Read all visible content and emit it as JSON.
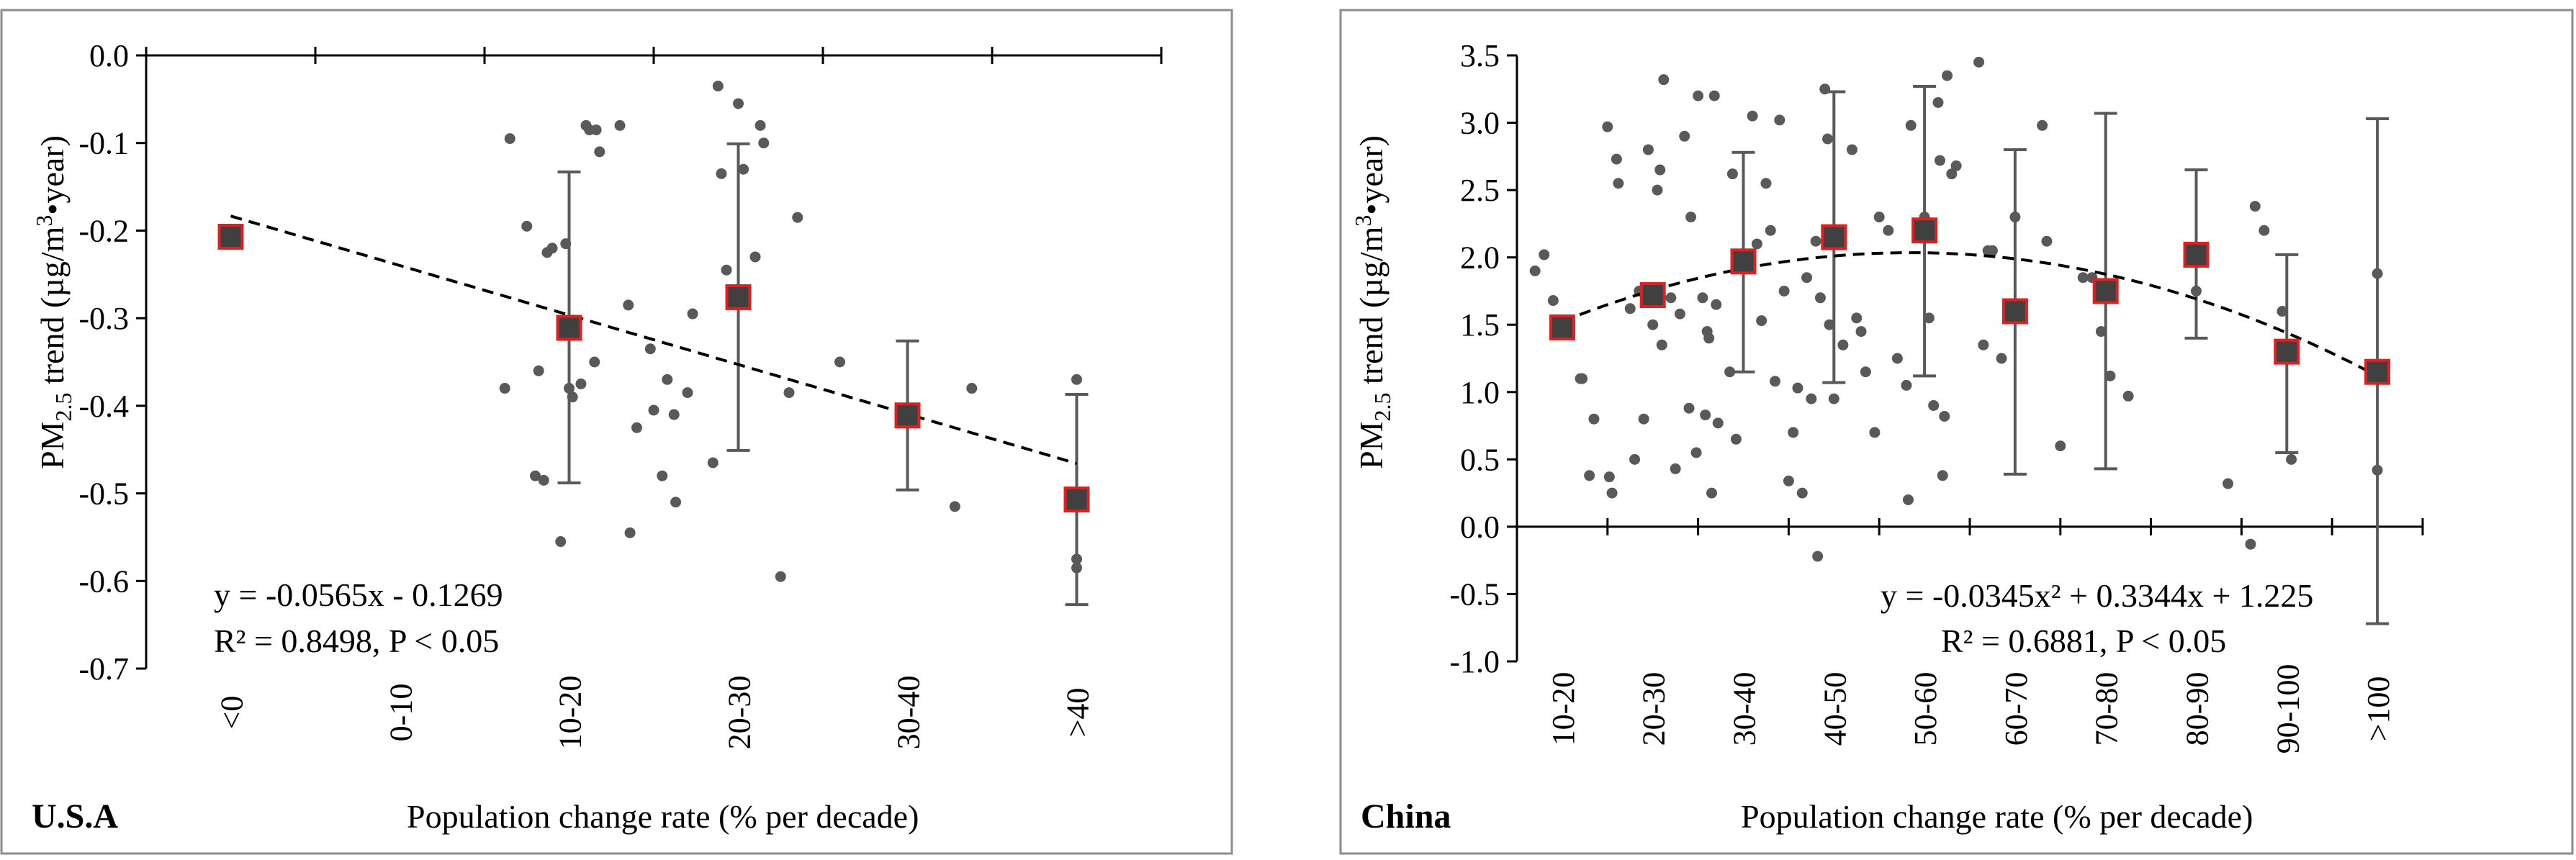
{
  "colors": {
    "marker_fill": "#404040",
    "marker_edge": "#e02020",
    "point": "#595959",
    "errorbar": "#595959"
  },
  "chart_data": [
    {
      "panel": "U.S.A",
      "type": "scatter",
      "title": "",
      "panel_label": "U.S.A",
      "xlabel": "Population change rate (% per decade)",
      "ylabel": "PM2.5 trend (µg/m³•year)",
      "ylabel_parts": {
        "pm": "PM",
        "sub": "2.5",
        "rest": " trend (µg/m",
        "sup": "3",
        "end": "•year)"
      },
      "categories": [
        "<0",
        "0-10",
        "10-20",
        "20-30",
        "30-40",
        ">40"
      ],
      "ylim": [
        -0.7,
        0.0
      ],
      "yticks": [
        0.0,
        -0.1,
        -0.2,
        -0.3,
        -0.4,
        -0.5,
        -0.6,
        -0.7
      ],
      "ytick_labels": [
        "0.0",
        "-0.1",
        "-0.2",
        "-0.3",
        "-0.4",
        "-0.5",
        "-0.6",
        "-0.7"
      ],
      "means": [
        {
          "x": 0,
          "y": -0.207
        },
        {
          "x": 2,
          "y": -0.311
        },
        {
          "x": 3,
          "y": -0.276
        },
        {
          "x": 4,
          "y": -0.411
        },
        {
          "x": 5,
          "y": -0.507
        }
      ],
      "error_bars": [
        {
          "x": 2,
          "low": -0.488,
          "high": -0.133
        },
        {
          "x": 3,
          "low": -0.451,
          "high": -0.101
        },
        {
          "x": 4,
          "low": -0.496,
          "high": -0.326
        },
        {
          "x": 5,
          "low": -0.627,
          "high": -0.387
        }
      ],
      "points": [
        [
          1.62,
          -0.38
        ],
        [
          1.65,
          -0.095
        ],
        [
          1.75,
          -0.195
        ],
        [
          1.8,
          -0.48
        ],
        [
          1.82,
          -0.36
        ],
        [
          1.85,
          -0.485
        ],
        [
          1.87,
          -0.225
        ],
        [
          1.9,
          -0.22
        ],
        [
          1.95,
          -0.555
        ],
        [
          1.98,
          -0.215
        ],
        [
          2.0,
          -0.38
        ],
        [
          2.02,
          -0.39
        ],
        [
          2.07,
          -0.375
        ],
        [
          2.1,
          -0.08
        ],
        [
          2.12,
          -0.085
        ],
        [
          2.15,
          -0.35
        ],
        [
          2.16,
          -0.085
        ],
        [
          2.18,
          -0.11
        ],
        [
          2.3,
          -0.08
        ],
        [
          2.35,
          -0.285
        ],
        [
          2.36,
          -0.545
        ],
        [
          2.4,
          -0.425
        ],
        [
          2.48,
          -0.335
        ],
        [
          2.5,
          -0.405
        ],
        [
          2.55,
          -0.48
        ],
        [
          2.58,
          -0.37
        ],
        [
          2.62,
          -0.41
        ],
        [
          2.63,
          -0.51
        ],
        [
          2.7,
          -0.385
        ],
        [
          2.73,
          -0.295
        ],
        [
          2.85,
          -0.465
        ],
        [
          2.88,
          -0.035
        ],
        [
          2.9,
          -0.135
        ],
        [
          2.93,
          -0.245
        ],
        [
          3.0,
          -0.055
        ],
        [
          3.03,
          -0.13
        ],
        [
          3.1,
          -0.23
        ],
        [
          3.13,
          -0.08
        ],
        [
          3.15,
          -0.1
        ],
        [
          3.25,
          -0.595
        ],
        [
          3.3,
          -0.385
        ],
        [
          3.35,
          -0.185
        ],
        [
          3.6,
          -0.35
        ],
        [
          4.0,
          -0.41
        ],
        [
          4.28,
          -0.515
        ],
        [
          4.38,
          -0.38
        ],
        [
          5.0,
          -0.37
        ],
        [
          5.0,
          -0.575
        ],
        [
          5.0,
          -0.585
        ]
      ],
      "trendline": {
        "type": "linear",
        "a": -0.0565,
        "b": -0.1269,
        "x_start": 1,
        "x_end": 6
      },
      "equation": "y = -0.0565x - 0.1269",
      "r2_text": "R² = 0.8498, P < 0.05"
    },
    {
      "panel": "China",
      "type": "scatter",
      "title": "",
      "panel_label": "China",
      "xlabel": "Population change rate (% per decade)",
      "ylabel": "PM2.5 trend (µg/m³•year)",
      "ylabel_parts": {
        "pm": "PM",
        "sub": "2.5",
        "rest": " trend (µg/m",
        "sup": "3",
        "end": "•year)"
      },
      "categories": [
        "10-20",
        "20-30",
        "30-40",
        "40-50",
        "50-60",
        "60-70",
        "70-80",
        "80-90",
        "90-100",
        ">100"
      ],
      "ylim": [
        -1.0,
        3.5
      ],
      "yticks": [
        3.5,
        3.0,
        2.5,
        2.0,
        1.5,
        1.0,
        0.5,
        0.0,
        -0.5,
        -1.0
      ],
      "ytick_labels": [
        "3.5",
        "3.0",
        "2.5",
        "2.0",
        "1.5",
        "1.0",
        "0.5",
        "0.0",
        "-0.5",
        "-1.0"
      ],
      "means": [
        {
          "x": 0,
          "y": 1.48
        },
        {
          "x": 1,
          "y": 1.72
        },
        {
          "x": 2,
          "y": 1.97
        },
        {
          "x": 3,
          "y": 2.15
        },
        {
          "x": 4,
          "y": 2.2
        },
        {
          "x": 5,
          "y": 1.6
        },
        {
          "x": 6,
          "y": 1.75
        },
        {
          "x": 7,
          "y": 2.02
        },
        {
          "x": 8,
          "y": 1.3
        },
        {
          "x": 9,
          "y": 1.15
        }
      ],
      "error_bars": [
        {
          "x": 2,
          "low": 1.15,
          "high": 2.78
        },
        {
          "x": 3,
          "low": 1.07,
          "high": 3.23
        },
        {
          "x": 4,
          "low": 1.12,
          "high": 3.27
        },
        {
          "x": 5,
          "low": 0.39,
          "high": 2.8
        },
        {
          "x": 6,
          "low": 0.43,
          "high": 3.07
        },
        {
          "x": 7,
          "low": 1.4,
          "high": 2.65
        },
        {
          "x": 8,
          "low": 0.55,
          "high": 2.02
        },
        {
          "x": 9,
          "low": -0.72,
          "high": 3.03
        }
      ],
      "points": [
        [
          -0.3,
          1.9
        ],
        [
          -0.2,
          2.02
        ],
        [
          -0.1,
          1.68
        ],
        [
          0.2,
          1.1
        ],
        [
          0.22,
          1.1
        ],
        [
          0.3,
          0.38
        ],
        [
          0.35,
          0.8
        ],
        [
          0.5,
          2.97
        ],
        [
          0.52,
          0.37
        ],
        [
          0.55,
          0.25
        ],
        [
          0.6,
          2.73
        ],
        [
          0.62,
          2.55
        ],
        [
          0.75,
          1.62
        ],
        [
          0.8,
          0.5
        ],
        [
          0.85,
          1.75
        ],
        [
          0.9,
          0.8
        ],
        [
          0.95,
          2.8
        ],
        [
          1.0,
          1.5
        ],
        [
          1.05,
          2.5
        ],
        [
          1.08,
          2.65
        ],
        [
          1.1,
          1.35
        ],
        [
          1.12,
          3.32
        ],
        [
          1.2,
          1.7
        ],
        [
          1.25,
          0.43
        ],
        [
          1.3,
          1.58
        ],
        [
          1.35,
          2.9
        ],
        [
          1.4,
          0.88
        ],
        [
          1.42,
          2.3
        ],
        [
          1.48,
          0.55
        ],
        [
          1.5,
          3.2
        ],
        [
          1.55,
          1.7
        ],
        [
          1.58,
          0.83
        ],
        [
          1.6,
          1.45
        ],
        [
          1.62,
          1.4
        ],
        [
          1.65,
          0.25
        ],
        [
          1.68,
          3.2
        ],
        [
          1.7,
          1.65
        ],
        [
          1.72,
          0.77
        ],
        [
          1.85,
          1.15
        ],
        [
          1.88,
          2.62
        ],
        [
          1.92,
          0.65
        ],
        [
          2.1,
          3.05
        ],
        [
          2.15,
          2.1
        ],
        [
          2.2,
          1.53
        ],
        [
          2.25,
          2.55
        ],
        [
          2.3,
          2.2
        ],
        [
          2.35,
          1.08
        ],
        [
          2.4,
          3.02
        ],
        [
          2.45,
          1.75
        ],
        [
          2.5,
          0.34
        ],
        [
          2.55,
          0.7
        ],
        [
          2.6,
          1.03
        ],
        [
          2.65,
          0.25
        ],
        [
          2.7,
          1.85
        ],
        [
          2.75,
          0.95
        ],
        [
          2.8,
          2.12
        ],
        [
          2.82,
          -0.22
        ],
        [
          2.85,
          1.7
        ],
        [
          2.9,
          3.25
        ],
        [
          2.93,
          2.88
        ],
        [
          2.95,
          1.5
        ],
        [
          3.0,
          0.95
        ],
        [
          3.1,
          1.35
        ],
        [
          3.2,
          2.8
        ],
        [
          3.25,
          1.55
        ],
        [
          3.3,
          1.45
        ],
        [
          3.35,
          1.15
        ],
        [
          3.45,
          0.7
        ],
        [
          3.5,
          2.3
        ],
        [
          3.6,
          2.2
        ],
        [
          3.7,
          1.25
        ],
        [
          3.8,
          1.05
        ],
        [
          3.82,
          0.2
        ],
        [
          3.85,
          2.98
        ],
        [
          4.0,
          2.3
        ],
        [
          4.05,
          1.55
        ],
        [
          4.1,
          0.9
        ],
        [
          4.15,
          3.15
        ],
        [
          4.17,
          2.72
        ],
        [
          4.2,
          0.38
        ],
        [
          4.22,
          0.82
        ],
        [
          4.25,
          3.35
        ],
        [
          4.3,
          2.62
        ],
        [
          4.35,
          2.68
        ],
        [
          4.6,
          3.45
        ],
        [
          4.65,
          1.35
        ],
        [
          4.7,
          2.05
        ],
        [
          4.75,
          2.05
        ],
        [
          4.85,
          1.25
        ],
        [
          5.0,
          2.3
        ],
        [
          5.3,
          2.98
        ],
        [
          5.35,
          2.12
        ],
        [
          5.5,
          0.6
        ],
        [
          5.75,
          1.85
        ],
        [
          5.85,
          1.85
        ],
        [
          5.95,
          1.45
        ],
        [
          6.05,
          1.12
        ],
        [
          6.25,
          0.97
        ],
        [
          7.0,
          1.75
        ],
        [
          7.35,
          0.32
        ],
        [
          7.6,
          -0.13
        ],
        [
          7.65,
          2.38
        ],
        [
          7.75,
          2.2
        ],
        [
          7.95,
          1.6
        ],
        [
          8.05,
          0.5
        ],
        [
          9.0,
          1.88
        ],
        [
          9.0,
          0.42
        ]
      ],
      "trendline": {
        "type": "quadratic",
        "a": -0.0345,
        "b": 0.3344,
        "c": 1.225,
        "x_start": 1,
        "x_end": 10
      },
      "equation": "y = -0.0345x² + 0.3344x + 1.225",
      "r2_text": "R² = 0.6881, P < 0.05"
    }
  ]
}
